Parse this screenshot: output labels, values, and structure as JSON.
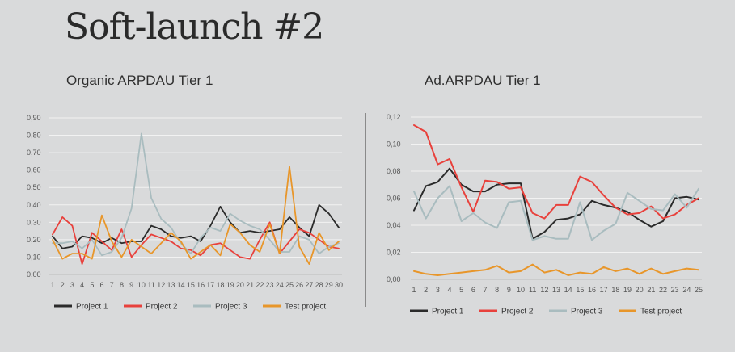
{
  "page": {
    "title": "Soft-launch #2"
  },
  "colors": {
    "project1": "#2b2b2b",
    "project2": "#e8413c",
    "project3": "#a9bcbf",
    "test": "#e8962a",
    "grid": "#f2f2f2",
    "axis": "#bdbdbd"
  },
  "chart_data": [
    {
      "type": "line",
      "title": "Organic ARPDAU Tier 1",
      "x": [
        "1",
        "2",
        "3",
        "4",
        "5",
        "6",
        "7",
        "8",
        "9",
        "10",
        "11",
        "12",
        "13",
        "14",
        "15",
        "16",
        "17",
        "18",
        "19",
        "20",
        "21",
        "22",
        "23",
        "24",
        "25",
        "26",
        "27",
        "28",
        "29",
        "30"
      ],
      "ylim": [
        0,
        0.9
      ],
      "yticks": [
        "0,00",
        "0,10",
        "0,20",
        "0,30",
        "0,40",
        "0,50",
        "0,60",
        "0,70",
        "0,80",
        "0,90"
      ],
      "grid": true,
      "legend": "bottom",
      "series": [
        {
          "name": "Project 1",
          "color_key": "project1",
          "values": [
            0.22,
            0.15,
            0.16,
            0.22,
            0.21,
            0.18,
            0.21,
            0.18,
            0.19,
            0.19,
            0.28,
            0.26,
            0.22,
            0.21,
            0.22,
            0.19,
            0.28,
            0.39,
            0.3,
            0.24,
            0.25,
            0.24,
            0.25,
            0.26,
            0.33,
            0.27,
            0.22,
            0.4,
            0.35,
            0.27
          ]
        },
        {
          "name": "Project 2",
          "color_key": "project2",
          "values": [
            0.23,
            0.33,
            0.28,
            0.06,
            0.24,
            0.19,
            0.14,
            0.26,
            0.1,
            0.17,
            0.23,
            0.21,
            0.19,
            0.15,
            0.14,
            0.11,
            0.17,
            0.18,
            0.14,
            0.1,
            0.09,
            0.2,
            0.3,
            0.12,
            0.19,
            0.26,
            0.24,
            0.2,
            0.16,
            0.15
          ]
        },
        {
          "name": "Project 3",
          "color_key": "project3",
          "values": [
            0.18,
            0.18,
            0.19,
            0.15,
            0.2,
            0.11,
            0.13,
            0.21,
            0.38,
            0.81,
            0.44,
            0.32,
            0.27,
            0.18,
            0.12,
            0.21,
            0.27,
            0.25,
            0.35,
            0.31,
            0.28,
            0.26,
            0.2,
            0.13,
            0.13,
            0.22,
            0.2,
            0.12,
            0.16,
            0.18
          ]
        },
        {
          "name": "Test project",
          "color_key": "test",
          "values": [
            0.2,
            0.09,
            0.12,
            0.12,
            0.09,
            0.34,
            0.19,
            0.1,
            0.2,
            0.16,
            0.12,
            0.18,
            0.24,
            0.19,
            0.09,
            0.13,
            0.17,
            0.11,
            0.29,
            0.24,
            0.17,
            0.13,
            0.29,
            0.12,
            0.62,
            0.16,
            0.06,
            0.24,
            0.14,
            0.19
          ]
        }
      ]
    },
    {
      "type": "line",
      "title": "Ad.ARPDAU Tier 1",
      "x": [
        "1",
        "2",
        "3",
        "4",
        "5",
        "6",
        "7",
        "8",
        "9",
        "10",
        "11",
        "12",
        "13",
        "14",
        "15",
        "16",
        "17",
        "18",
        "19",
        "20",
        "21",
        "22",
        "23",
        "24",
        "25"
      ],
      "ylim": [
        0,
        0.12
      ],
      "yticks": [
        "0,00",
        "0,02",
        "0,04",
        "0,06",
        "0,08",
        "0,10",
        "0,12"
      ],
      "grid": true,
      "legend": "bottom",
      "series": [
        {
          "name": "Project 1",
          "color_key": "project1",
          "values": [
            0.051,
            0.069,
            0.072,
            0.082,
            0.07,
            0.065,
            0.065,
            0.07,
            0.071,
            0.071,
            0.03,
            0.035,
            0.044,
            0.045,
            0.048,
            0.058,
            0.055,
            0.053,
            0.05,
            0.044,
            0.039,
            0.043,
            0.06,
            0.061,
            0.059
          ]
        },
        {
          "name": "Project 2",
          "color_key": "project2",
          "values": [
            0.114,
            0.109,
            0.085,
            0.089,
            0.068,
            0.05,
            0.073,
            0.072,
            0.067,
            0.068,
            0.049,
            0.045,
            0.055,
            0.055,
            0.076,
            0.072,
            0.062,
            0.053,
            0.048,
            0.049,
            0.054,
            0.045,
            0.048,
            0.055,
            0.06
          ]
        },
        {
          "name": "Project 3",
          "color_key": "project3",
          "values": [
            0.065,
            0.045,
            0.06,
            0.069,
            0.043,
            0.049,
            0.042,
            0.038,
            0.057,
            0.058,
            0.029,
            0.032,
            0.03,
            0.03,
            0.057,
            0.029,
            0.036,
            0.041,
            0.064,
            0.058,
            0.052,
            0.051,
            0.063,
            0.053,
            0.067
          ]
        },
        {
          "name": "Test project",
          "color_key": "test",
          "values": [
            0.006,
            0.004,
            0.003,
            0.004,
            0.005,
            0.006,
            0.007,
            0.01,
            0.005,
            0.006,
            0.011,
            0.005,
            0.007,
            0.003,
            0.005,
            0.004,
            0.009,
            0.006,
            0.008,
            0.004,
            0.008,
            0.004,
            0.006,
            0.008,
            0.007
          ]
        }
      ]
    }
  ]
}
